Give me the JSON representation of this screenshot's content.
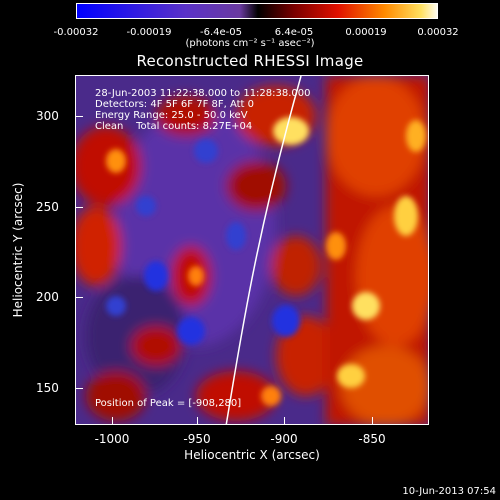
{
  "colorbar": {
    "tick_labels": [
      "-0.00032",
      "-0.00019",
      "-6.4e-05",
      "6.4e-05",
      "0.00019",
      "0.00032"
    ],
    "units": "(photons cm⁻² s⁻¹ asec⁻²)"
  },
  "title": "Reconstructed RHESSI Image",
  "info": {
    "time": "28-Jun-2003 11:22:38.000 to 11:28:38.000",
    "detectors": "Detectors: 4F 5F 6F 7F 8F, Att 0",
    "energy": "Energy Range: 25.0 - 50.0 keV",
    "clean": "Clean    Total counts: 8.27E+04"
  },
  "peak": "Position of Peak = [-908,280]",
  "x_axis": {
    "label": "Heliocentric X (arcsec)",
    "ticks": [
      "-1000",
      "-950",
      "-900",
      "-850"
    ]
  },
  "y_axis": {
    "label": "Heliocentric Y (arcsec)",
    "ticks": [
      "300",
      "250",
      "200",
      "150"
    ]
  },
  "timestamp": "10-Jun-2013 07:54"
}
